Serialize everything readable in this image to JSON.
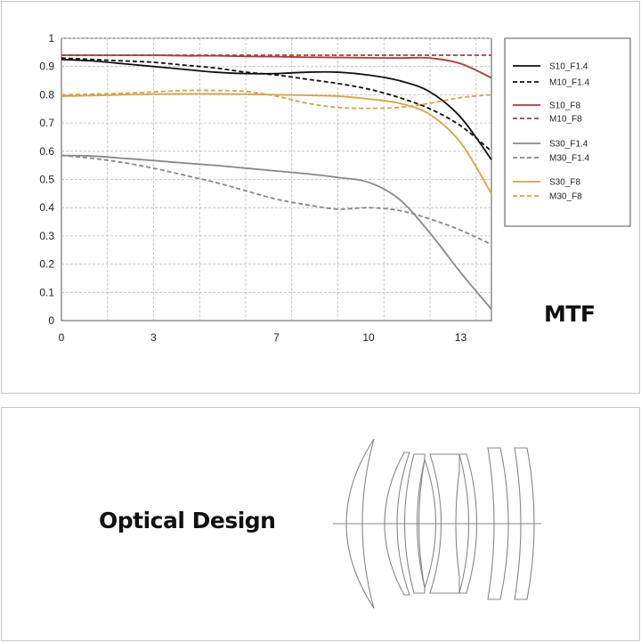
{
  "chart_data": {
    "type": "line",
    "title": "MTF",
    "xlabel": "",
    "ylabel": "",
    "xlim": [
      0,
      14
    ],
    "ylim": [
      0,
      1
    ],
    "x_ticks": [
      "0",
      "3",
      "7",
      "10",
      "13"
    ],
    "y_ticks": [
      "0",
      "0.1",
      "0.2",
      "0.3",
      "0.4",
      "0.5",
      "0.6",
      "0.7",
      "0.8",
      "0.9",
      "1"
    ],
    "grid": true,
    "legend_position": "right",
    "series": [
      {
        "name": "S10_F1.4",
        "color": "#111111",
        "dash": false,
        "x": [
          0,
          1,
          2,
          3,
          4,
          5,
          6,
          7,
          8,
          9,
          10,
          11,
          12,
          13,
          14
        ],
        "y": [
          0.925,
          0.92,
          0.91,
          0.9,
          0.89,
          0.88,
          0.875,
          0.875,
          0.88,
          0.88,
          0.87,
          0.85,
          0.81,
          0.72,
          0.57
        ]
      },
      {
        "name": "M10_F1.4",
        "color": "#111111",
        "dash": true,
        "x": [
          0,
          1,
          2,
          3,
          4,
          5,
          6,
          7,
          8,
          9,
          10,
          11,
          12,
          13,
          14
        ],
        "y": [
          0.93,
          0.925,
          0.92,
          0.915,
          0.905,
          0.895,
          0.88,
          0.87,
          0.855,
          0.84,
          0.82,
          0.79,
          0.75,
          0.69,
          0.6
        ]
      },
      {
        "name": "S10_F8",
        "color": "#b03a35",
        "dash": false,
        "x": [
          0,
          1,
          2,
          3,
          4,
          5,
          6,
          7,
          8,
          9,
          10,
          11,
          12,
          13,
          14
        ],
        "y": [
          0.94,
          0.94,
          0.94,
          0.94,
          0.938,
          0.938,
          0.936,
          0.935,
          0.933,
          0.932,
          0.931,
          0.93,
          0.93,
          0.91,
          0.86
        ]
      },
      {
        "name": "M10_F8",
        "color": "#b03a35",
        "dash": true,
        "x": [
          0,
          1,
          2,
          3,
          4,
          5,
          6,
          7,
          8,
          9,
          10,
          11,
          12,
          13,
          14
        ],
        "y": [
          0.94,
          0.94,
          0.94,
          0.94,
          0.94,
          0.94,
          0.94,
          0.94,
          0.94,
          0.94,
          0.94,
          0.94,
          0.94,
          0.94,
          0.94
        ]
      },
      {
        "name": "S30_F1.4",
        "color": "#888888",
        "dash": false,
        "x": [
          0,
          1,
          2,
          3,
          4,
          5,
          6,
          7,
          8,
          9,
          10,
          11,
          12,
          13,
          14
        ],
        "y": [
          0.585,
          0.583,
          0.575,
          0.567,
          0.558,
          0.55,
          0.54,
          0.53,
          0.52,
          0.507,
          0.49,
          0.43,
          0.31,
          0.17,
          0.04
        ]
      },
      {
        "name": "M30_F1.4",
        "color": "#888888",
        "dash": true,
        "x": [
          0,
          1,
          2,
          3,
          4,
          5,
          6,
          7,
          8,
          9,
          10,
          11,
          12,
          13,
          14
        ],
        "y": [
          0.585,
          0.575,
          0.56,
          0.54,
          0.515,
          0.49,
          0.46,
          0.43,
          0.41,
          0.395,
          0.4,
          0.39,
          0.36,
          0.32,
          0.27
        ]
      },
      {
        "name": "S30_F8",
        "color": "#e0a040",
        "dash": false,
        "x": [
          0,
          1,
          2,
          3,
          4,
          5,
          6,
          7,
          8,
          9,
          10,
          11,
          12,
          13,
          14
        ],
        "y": [
          0.795,
          0.797,
          0.8,
          0.802,
          0.803,
          0.803,
          0.802,
          0.8,
          0.798,
          0.795,
          0.785,
          0.77,
          0.73,
          0.63,
          0.45
        ]
      },
      {
        "name": "M30_F8",
        "color": "#e0a040",
        "dash": true,
        "x": [
          0,
          1,
          2,
          3,
          4,
          5,
          6,
          7,
          8,
          9,
          10,
          11,
          12,
          13,
          14
        ],
        "y": [
          0.8,
          0.802,
          0.805,
          0.81,
          0.815,
          0.815,
          0.812,
          0.795,
          0.77,
          0.755,
          0.752,
          0.755,
          0.77,
          0.79,
          0.8
        ]
      }
    ]
  },
  "optical": {
    "title": "Optical Design"
  }
}
